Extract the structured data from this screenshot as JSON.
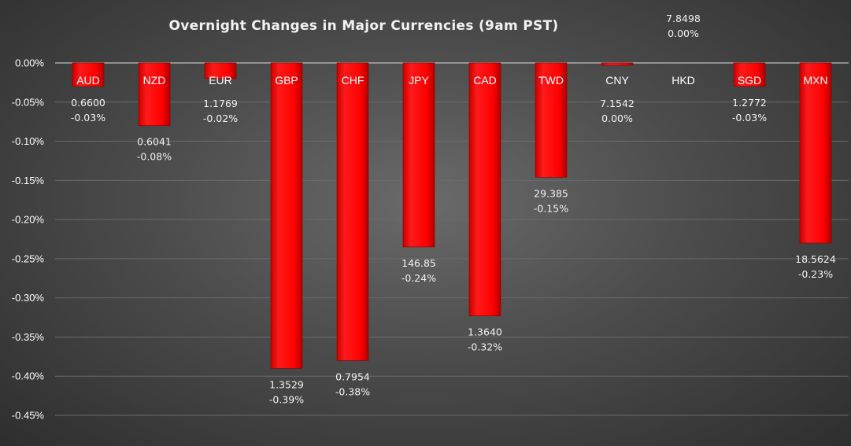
{
  "chart_data": {
    "type": "bar",
    "title": "Overnight Changes in Major Currencies (9am PST)",
    "xlabel": "",
    "ylabel": "",
    "ylim": [
      -0.45,
      0.0
    ],
    "ytick_labels": [
      "0.00%",
      "-0.05%",
      "-0.10%",
      "-0.15%",
      "-0.20%",
      "-0.25%",
      "-0.30%",
      "-0.35%",
      "-0.40%",
      "-0.45%"
    ],
    "yticks": [
      0.0,
      -0.05,
      -0.1,
      -0.15,
      -0.2,
      -0.25,
      -0.3,
      -0.35,
      -0.4,
      -0.45
    ],
    "grid": true,
    "legend": "none",
    "bar_color": "#ff0000",
    "categories": [
      "AUD",
      "NZD",
      "EUR",
      "GBP",
      "CHF",
      "JPY",
      "CAD",
      "TWD",
      "CNY",
      "HKD",
      "SGD",
      "MXN"
    ],
    "values": [
      -0.03,
      -0.08,
      -0.02,
      -0.39,
      -0.38,
      -0.235,
      -0.323,
      -0.146,
      -0.003,
      0.0,
      -0.03,
      -0.23
    ],
    "rates": [
      "0.6600",
      "0.6041",
      "1.1769",
      "1.3529",
      "0.7954",
      "146.85",
      "1.3640",
      "29.385",
      "7.1542",
      "7.8498",
      "1.2772",
      "18.5624"
    ],
    "pct_labels": [
      "-0.03%",
      "-0.08%",
      "-0.02%",
      "-0.39%",
      "-0.38%",
      "-0.24%",
      "-0.32%",
      "-0.15%",
      "0.00%",
      "0.00%",
      "-0.03%",
      "-0.23%"
    ]
  }
}
